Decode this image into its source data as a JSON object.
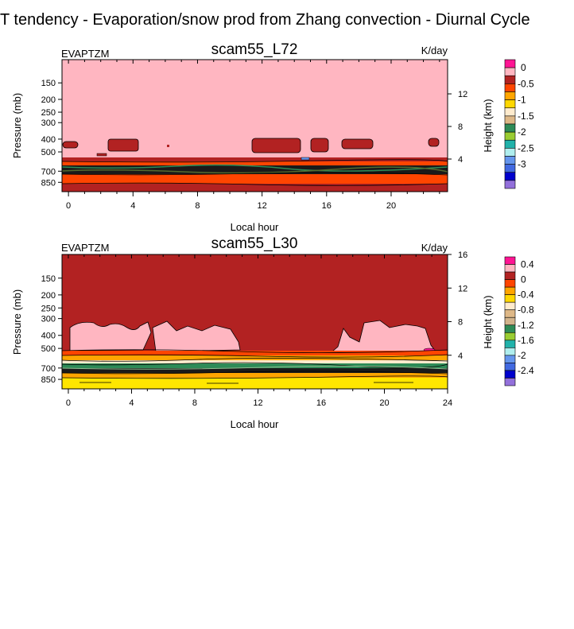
{
  "title": "T tendency - Evaporation/snow prod from Zhang convection - Diurnal Cycle",
  "chart_data": [
    {
      "type": "contour",
      "panel_title": "scam55_L72",
      "variable": "EVAPTZM",
      "units": "K/day",
      "xlabel": "Local hour",
      "ylabel": "Pressure (mb)",
      "y2label": "Height (km)",
      "xlim": [
        -0.4,
        23.5
      ],
      "x_ticks": [
        0,
        4,
        8,
        12,
        16,
        20
      ],
      "y_ticks": [
        150,
        200,
        250,
        300,
        400,
        500,
        700,
        850
      ],
      "y2_ticks": [
        4,
        8,
        12
      ],
      "colorbar_labels": [
        "0",
        "-0.5",
        "-1",
        "-1.5",
        "-2",
        "-2.5",
        "-3"
      ],
      "background_level": "0 to 0.25 (pink)",
      "bands": [
        {
          "p_top": 560,
          "p_bottom": 600,
          "value_range": "-0.25 to -0.5"
        },
        {
          "p_top": 600,
          "p_bottom": 660,
          "value_range": "-0.5 to -0.75"
        },
        {
          "p_top": 660,
          "p_bottom": 720,
          "value_range": "-2 to -3.25"
        },
        {
          "p_top": 720,
          "p_bottom": 790,
          "value_range": "-0.5 to -0.75"
        },
        {
          "p_top": 790,
          "p_bottom": 1000,
          "value_range": "-0.25 to -0.5"
        }
      ],
      "blobs": [
        {
          "x": [
            -0.1,
            0.7
          ],
          "p": [
            450,
            490
          ]
        },
        {
          "x": [
            2.7,
            4.7
          ],
          "p": [
            430,
            500
          ]
        },
        {
          "x": [
            11.6,
            14.8
          ],
          "p": [
            425,
            505
          ]
        },
        {
          "x": [
            15.0,
            16.2
          ],
          "p": [
            425,
            505
          ]
        },
        {
          "x": [
            17.1,
            19.8
          ],
          "p": [
            425,
            500
          ]
        },
        {
          "x": [
            22.6,
            23.2
          ],
          "p": [
            445,
            490
          ]
        }
      ]
    },
    {
      "type": "contour",
      "panel_title": "scam55_L30",
      "variable": "EVAPTZM",
      "units": "K/day",
      "xlabel": "Local hour",
      "ylabel": "Pressure (mb)",
      "y2label": "Height (km)",
      "xlim": [
        -0.4,
        24
      ],
      "x_ticks": [
        0,
        4,
        8,
        12,
        16,
        20,
        24
      ],
      "y_ticks": [
        150,
        200,
        250,
        300,
        400,
        500,
        700,
        850
      ],
      "y2_ticks": [
        4,
        8,
        12,
        16
      ],
      "colorbar_labels": [
        "0.4",
        "0",
        "-0.4",
        "-0.8",
        "-1.2",
        "-1.6",
        "-2",
        "-2.4"
      ],
      "background_level": "-0.2 to 0 (dark red)",
      "bands": [
        {
          "p_top": 520,
          "p_bottom": 560,
          "value_range": "-0.2 to -0.6"
        },
        {
          "p_top": 560,
          "p_bottom": 620,
          "value_range": "-0.6 to -1.0"
        },
        {
          "p_top": 620,
          "p_bottom": 690,
          "value_range": "-1.2 to -1.8"
        },
        {
          "p_top": 690,
          "p_bottom": 770,
          "value_range": "-1.8 to -2.4"
        },
        {
          "p_top": 770,
          "p_bottom": 830,
          "value_range": "-0.6 to -1.0"
        },
        {
          "p_top": 830,
          "p_bottom": 1000,
          "value_range": "-0.4 to -0.6"
        }
      ],
      "positive_patches": [
        {
          "x": [
            2.0,
            5.5
          ],
          "p": [
            300,
            520
          ]
        },
        {
          "x": [
            6.0,
            11.5
          ],
          "p": [
            300,
            520
          ]
        },
        {
          "x": [
            15.5,
            22.5
          ],
          "p": [
            300,
            540
          ]
        }
      ]
    }
  ]
}
